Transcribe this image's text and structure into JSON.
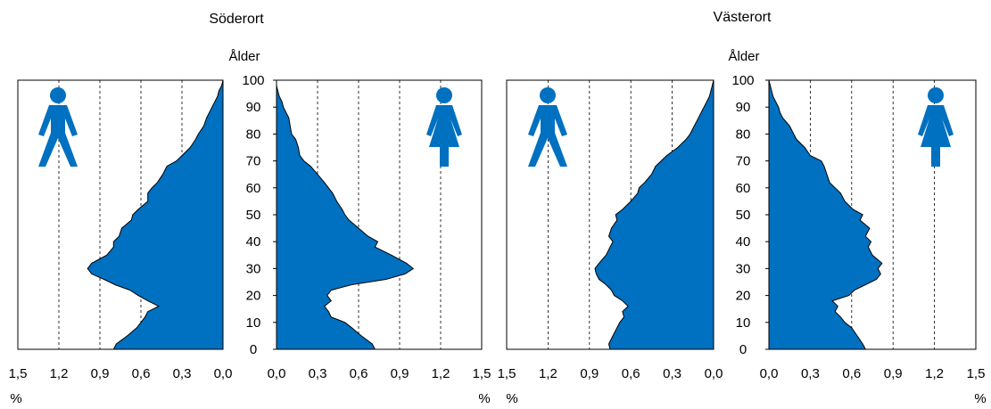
{
  "chart_data": [
    {
      "type": "area",
      "title": "Söderort",
      "ylabel": "Ålder",
      "yticks": [
        "0",
        "10",
        "20",
        "30",
        "40",
        "50",
        "60",
        "70",
        "80",
        "90",
        "100"
      ],
      "ylim": [
        0,
        100
      ],
      "xlim": [
        0,
        1.5
      ],
      "unit": "%",
      "male_xticks": [
        "1,5",
        "1,2",
        "0,9",
        "0,6",
        "0,3",
        "0,0"
      ],
      "female_xticks": [
        "0,0",
        "0,3",
        "0,6",
        "0,9",
        "1,2",
        "1,5"
      ],
      "grid": "vertical dashed",
      "age": [
        0,
        2,
        5,
        8,
        10,
        12,
        14,
        16,
        18,
        20,
        22,
        24,
        26,
        28,
        30,
        32,
        35,
        38,
        40,
        42,
        45,
        48,
        50,
        52,
        55,
        58,
        60,
        62,
        65,
        68,
        70,
        72,
        75,
        78,
        80,
        83,
        86,
        88,
        90,
        92,
        94,
        96,
        98,
        100
      ],
      "series": [
        {
          "values": [
            0.8,
            0.78,
            0.7,
            0.63,
            0.6,
            0.57,
            0.55,
            0.47,
            0.55,
            0.62,
            0.68,
            0.79,
            0.87,
            0.96,
            0.99,
            0.96,
            0.85,
            0.8,
            0.8,
            0.76,
            0.74,
            0.67,
            0.66,
            0.62,
            0.55,
            0.55,
            0.52,
            0.48,
            0.44,
            0.41,
            0.34,
            0.3,
            0.24,
            0.2,
            0.18,
            0.14,
            0.12,
            0.1,
            0.08,
            0.06,
            0.04,
            0.03,
            0.01,
            0.0
          ]
        },
        {
          "values": [
            0.72,
            0.7,
            0.62,
            0.55,
            0.5,
            0.4,
            0.38,
            0.35,
            0.4,
            0.37,
            0.4,
            0.55,
            0.8,
            0.94,
            1.0,
            0.95,
            0.84,
            0.72,
            0.74,
            0.67,
            0.6,
            0.53,
            0.5,
            0.48,
            0.44,
            0.41,
            0.38,
            0.35,
            0.3,
            0.25,
            0.2,
            0.17,
            0.16,
            0.14,
            0.11,
            0.1,
            0.09,
            0.07,
            0.05,
            0.04,
            0.02,
            0.01,
            0.0,
            0.0
          ]
        }
      ]
    },
    {
      "type": "area",
      "title": "Västerort",
      "ylabel": "Ålder",
      "yticks": [
        "0",
        "10",
        "20",
        "30",
        "40",
        "50",
        "60",
        "70",
        "80",
        "90",
        "100"
      ],
      "ylim": [
        0,
        100
      ],
      "xlim": [
        0,
        1.5
      ],
      "unit": "%",
      "male_xticks": [
        "1,5",
        "1,2",
        "0,9",
        "0,6",
        "0,3",
        "0,0"
      ],
      "female_xticks": [
        "0,0",
        "0,3",
        "0,6",
        "0,9",
        "1,2",
        "1,5"
      ],
      "grid": "vertical dashed",
      "age": [
        0,
        2,
        5,
        8,
        10,
        12,
        14,
        16,
        18,
        20,
        22,
        24,
        26,
        28,
        30,
        32,
        35,
        38,
        40,
        42,
        45,
        48,
        50,
        52,
        55,
        58,
        60,
        62,
        65,
        68,
        70,
        72,
        75,
        78,
        80,
        83,
        86,
        88,
        90,
        92,
        94,
        96,
        98,
        100
      ],
      "series": [
        {
          "values": [
            0.75,
            0.76,
            0.73,
            0.7,
            0.68,
            0.65,
            0.66,
            0.62,
            0.66,
            0.72,
            0.74,
            0.78,
            0.83,
            0.85,
            0.86,
            0.83,
            0.78,
            0.75,
            0.73,
            0.76,
            0.74,
            0.7,
            0.71,
            0.66,
            0.6,
            0.55,
            0.54,
            0.5,
            0.45,
            0.42,
            0.38,
            0.34,
            0.26,
            0.2,
            0.17,
            0.14,
            0.11,
            0.09,
            0.07,
            0.05,
            0.03,
            0.02,
            0.01,
            0.0
          ]
        },
        {
          "values": [
            0.7,
            0.68,
            0.64,
            0.6,
            0.55,
            0.52,
            0.48,
            0.5,
            0.46,
            0.58,
            0.62,
            0.7,
            0.78,
            0.81,
            0.79,
            0.82,
            0.75,
            0.72,
            0.74,
            0.7,
            0.73,
            0.66,
            0.68,
            0.61,
            0.55,
            0.52,
            0.48,
            0.44,
            0.42,
            0.4,
            0.38,
            0.3,
            0.26,
            0.2,
            0.18,
            0.15,
            0.1,
            0.08,
            0.07,
            0.05,
            0.03,
            0.02,
            0.01,
            0.0
          ]
        }
      ]
    }
  ],
  "colors": {
    "fill": "#0070C0",
    "stroke": "#000000",
    "icon": "#0070C0"
  },
  "icons": [
    "male-figure-icon",
    "female-figure-icon"
  ]
}
